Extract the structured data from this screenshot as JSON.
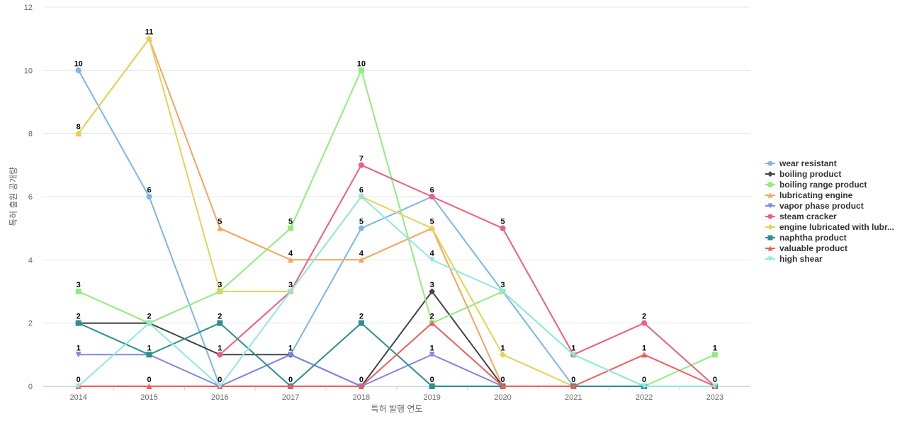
{
  "chart_data": {
    "type": "line",
    "title": "",
    "xlabel": "특허 발행 연도",
    "ylabel": "특허 출원 공개량",
    "x": [
      2014,
      2015,
      2016,
      2017,
      2018,
      2019,
      2020,
      2021,
      2022,
      2023
    ],
    "ylim": [
      0,
      12
    ],
    "yticks": [
      0,
      2,
      4,
      6,
      8,
      10,
      12
    ],
    "grid": true,
    "legend_position": "right",
    "series": [
      {
        "name": "wear resistant",
        "color": "#7cb5ec",
        "marker": "circle",
        "values": [
          10,
          6,
          0,
          1,
          5,
          6,
          3,
          0,
          null,
          null
        ]
      },
      {
        "name": "boiling product",
        "color": "#434348",
        "marker": "diamond",
        "values": [
          2,
          2,
          1,
          1,
          0,
          3,
          0,
          null,
          null,
          null
        ]
      },
      {
        "name": "boiling range product",
        "color": "#90ed7d",
        "marker": "square",
        "values": [
          3,
          2,
          3,
          5,
          10,
          2,
          3,
          1,
          0,
          1
        ]
      },
      {
        "name": "lubricating engine",
        "color": "#f7a35c",
        "marker": "triangle",
        "values": [
          8,
          11,
          5,
          4,
          4,
          5,
          0,
          null,
          null,
          null
        ]
      },
      {
        "name": "vapor phase product",
        "color": "#8085e9",
        "marker": "triangle-down",
        "values": [
          1,
          1,
          0,
          1,
          0,
          1,
          0,
          null,
          null,
          null
        ]
      },
      {
        "name": "steam cracker",
        "color": "#f15c80",
        "marker": "circle",
        "values": [
          null,
          null,
          1,
          3,
          7,
          6,
          5,
          1,
          2,
          0
        ]
      },
      {
        "name": "engine lubricated with lubr...",
        "color": "#e4d354",
        "marker": "diamond",
        "values": [
          8,
          11,
          3,
          3,
          6,
          5,
          1,
          0,
          null,
          null
        ]
      },
      {
        "name": "naphtha product",
        "color": "#2b908f",
        "marker": "square",
        "values": [
          2,
          1,
          2,
          0,
          2,
          0,
          0,
          0,
          0,
          0
        ]
      },
      {
        "name": "valuable product",
        "color": "#f45b5b",
        "marker": "triangle",
        "values": [
          0,
          0,
          0,
          0,
          0,
          2,
          0,
          0,
          1,
          0
        ]
      },
      {
        "name": "high shear",
        "color": "#91e8e1",
        "marker": "triangle-down",
        "values": [
          0,
          2,
          0,
          3,
          6,
          4,
          3,
          1,
          0,
          0
        ]
      }
    ],
    "data_labels": [
      {
        "x": 2014,
        "y": 10,
        "text": "10"
      },
      {
        "x": 2014,
        "y": 8,
        "text": "8"
      },
      {
        "x": 2014,
        "y": 3,
        "text": "3"
      },
      {
        "x": 2014,
        "y": 2,
        "text": "2"
      },
      {
        "x": 2014,
        "y": 1,
        "text": "1"
      },
      {
        "x": 2014,
        "y": 0,
        "text": "0"
      },
      {
        "x": 2015,
        "y": 11,
        "text": "11"
      },
      {
        "x": 2015,
        "y": 6,
        "text": "6"
      },
      {
        "x": 2015,
        "y": 2,
        "text": "2"
      },
      {
        "x": 2015,
        "y": 1,
        "text": "1"
      },
      {
        "x": 2015,
        "y": 0,
        "text": "0"
      },
      {
        "x": 2016,
        "y": 5,
        "text": "5"
      },
      {
        "x": 2016,
        "y": 3,
        "text": "3"
      },
      {
        "x": 2016,
        "y": 2,
        "text": "2"
      },
      {
        "x": 2016,
        "y": 1,
        "text": "1"
      },
      {
        "x": 2016,
        "y": 0,
        "text": "0"
      },
      {
        "x": 2017,
        "y": 5,
        "text": "5"
      },
      {
        "x": 2017,
        "y": 4,
        "text": "4"
      },
      {
        "x": 2017,
        "y": 3,
        "text": "3"
      },
      {
        "x": 2017,
        "y": 1,
        "text": "1"
      },
      {
        "x": 2017,
        "y": 0,
        "text": "0"
      },
      {
        "x": 2018,
        "y": 10,
        "text": "10"
      },
      {
        "x": 2018,
        "y": 7,
        "text": "7"
      },
      {
        "x": 2018,
        "y": 6,
        "text": "6"
      },
      {
        "x": 2018,
        "y": 5,
        "text": "5"
      },
      {
        "x": 2018,
        "y": 4,
        "text": "4"
      },
      {
        "x": 2018,
        "y": 2,
        "text": "2"
      },
      {
        "x": 2018,
        "y": 0,
        "text": "0"
      },
      {
        "x": 2019,
        "y": 6,
        "text": "6"
      },
      {
        "x": 2019,
        "y": 5,
        "text": "5"
      },
      {
        "x": 2019,
        "y": 4,
        "text": "4"
      },
      {
        "x": 2019,
        "y": 3,
        "text": "3"
      },
      {
        "x": 2019,
        "y": 2,
        "text": "2"
      },
      {
        "x": 2019,
        "y": 1,
        "text": "1"
      },
      {
        "x": 2019,
        "y": 0,
        "text": "0"
      },
      {
        "x": 2020,
        "y": 5,
        "text": "5"
      },
      {
        "x": 2020,
        "y": 3,
        "text": "3"
      },
      {
        "x": 2020,
        "y": 1,
        "text": "1"
      },
      {
        "x": 2020,
        "y": 0,
        "text": "0"
      },
      {
        "x": 2021,
        "y": 1,
        "text": "1"
      },
      {
        "x": 2021,
        "y": 0,
        "text": "0"
      },
      {
        "x": 2022,
        "y": 2,
        "text": "2"
      },
      {
        "x": 2022,
        "y": 1,
        "text": "1"
      },
      {
        "x": 2022,
        "y": 0,
        "text": "0"
      },
      {
        "x": 2023,
        "y": 1,
        "text": "1"
      },
      {
        "x": 2023,
        "y": 0,
        "text": "0"
      }
    ]
  }
}
